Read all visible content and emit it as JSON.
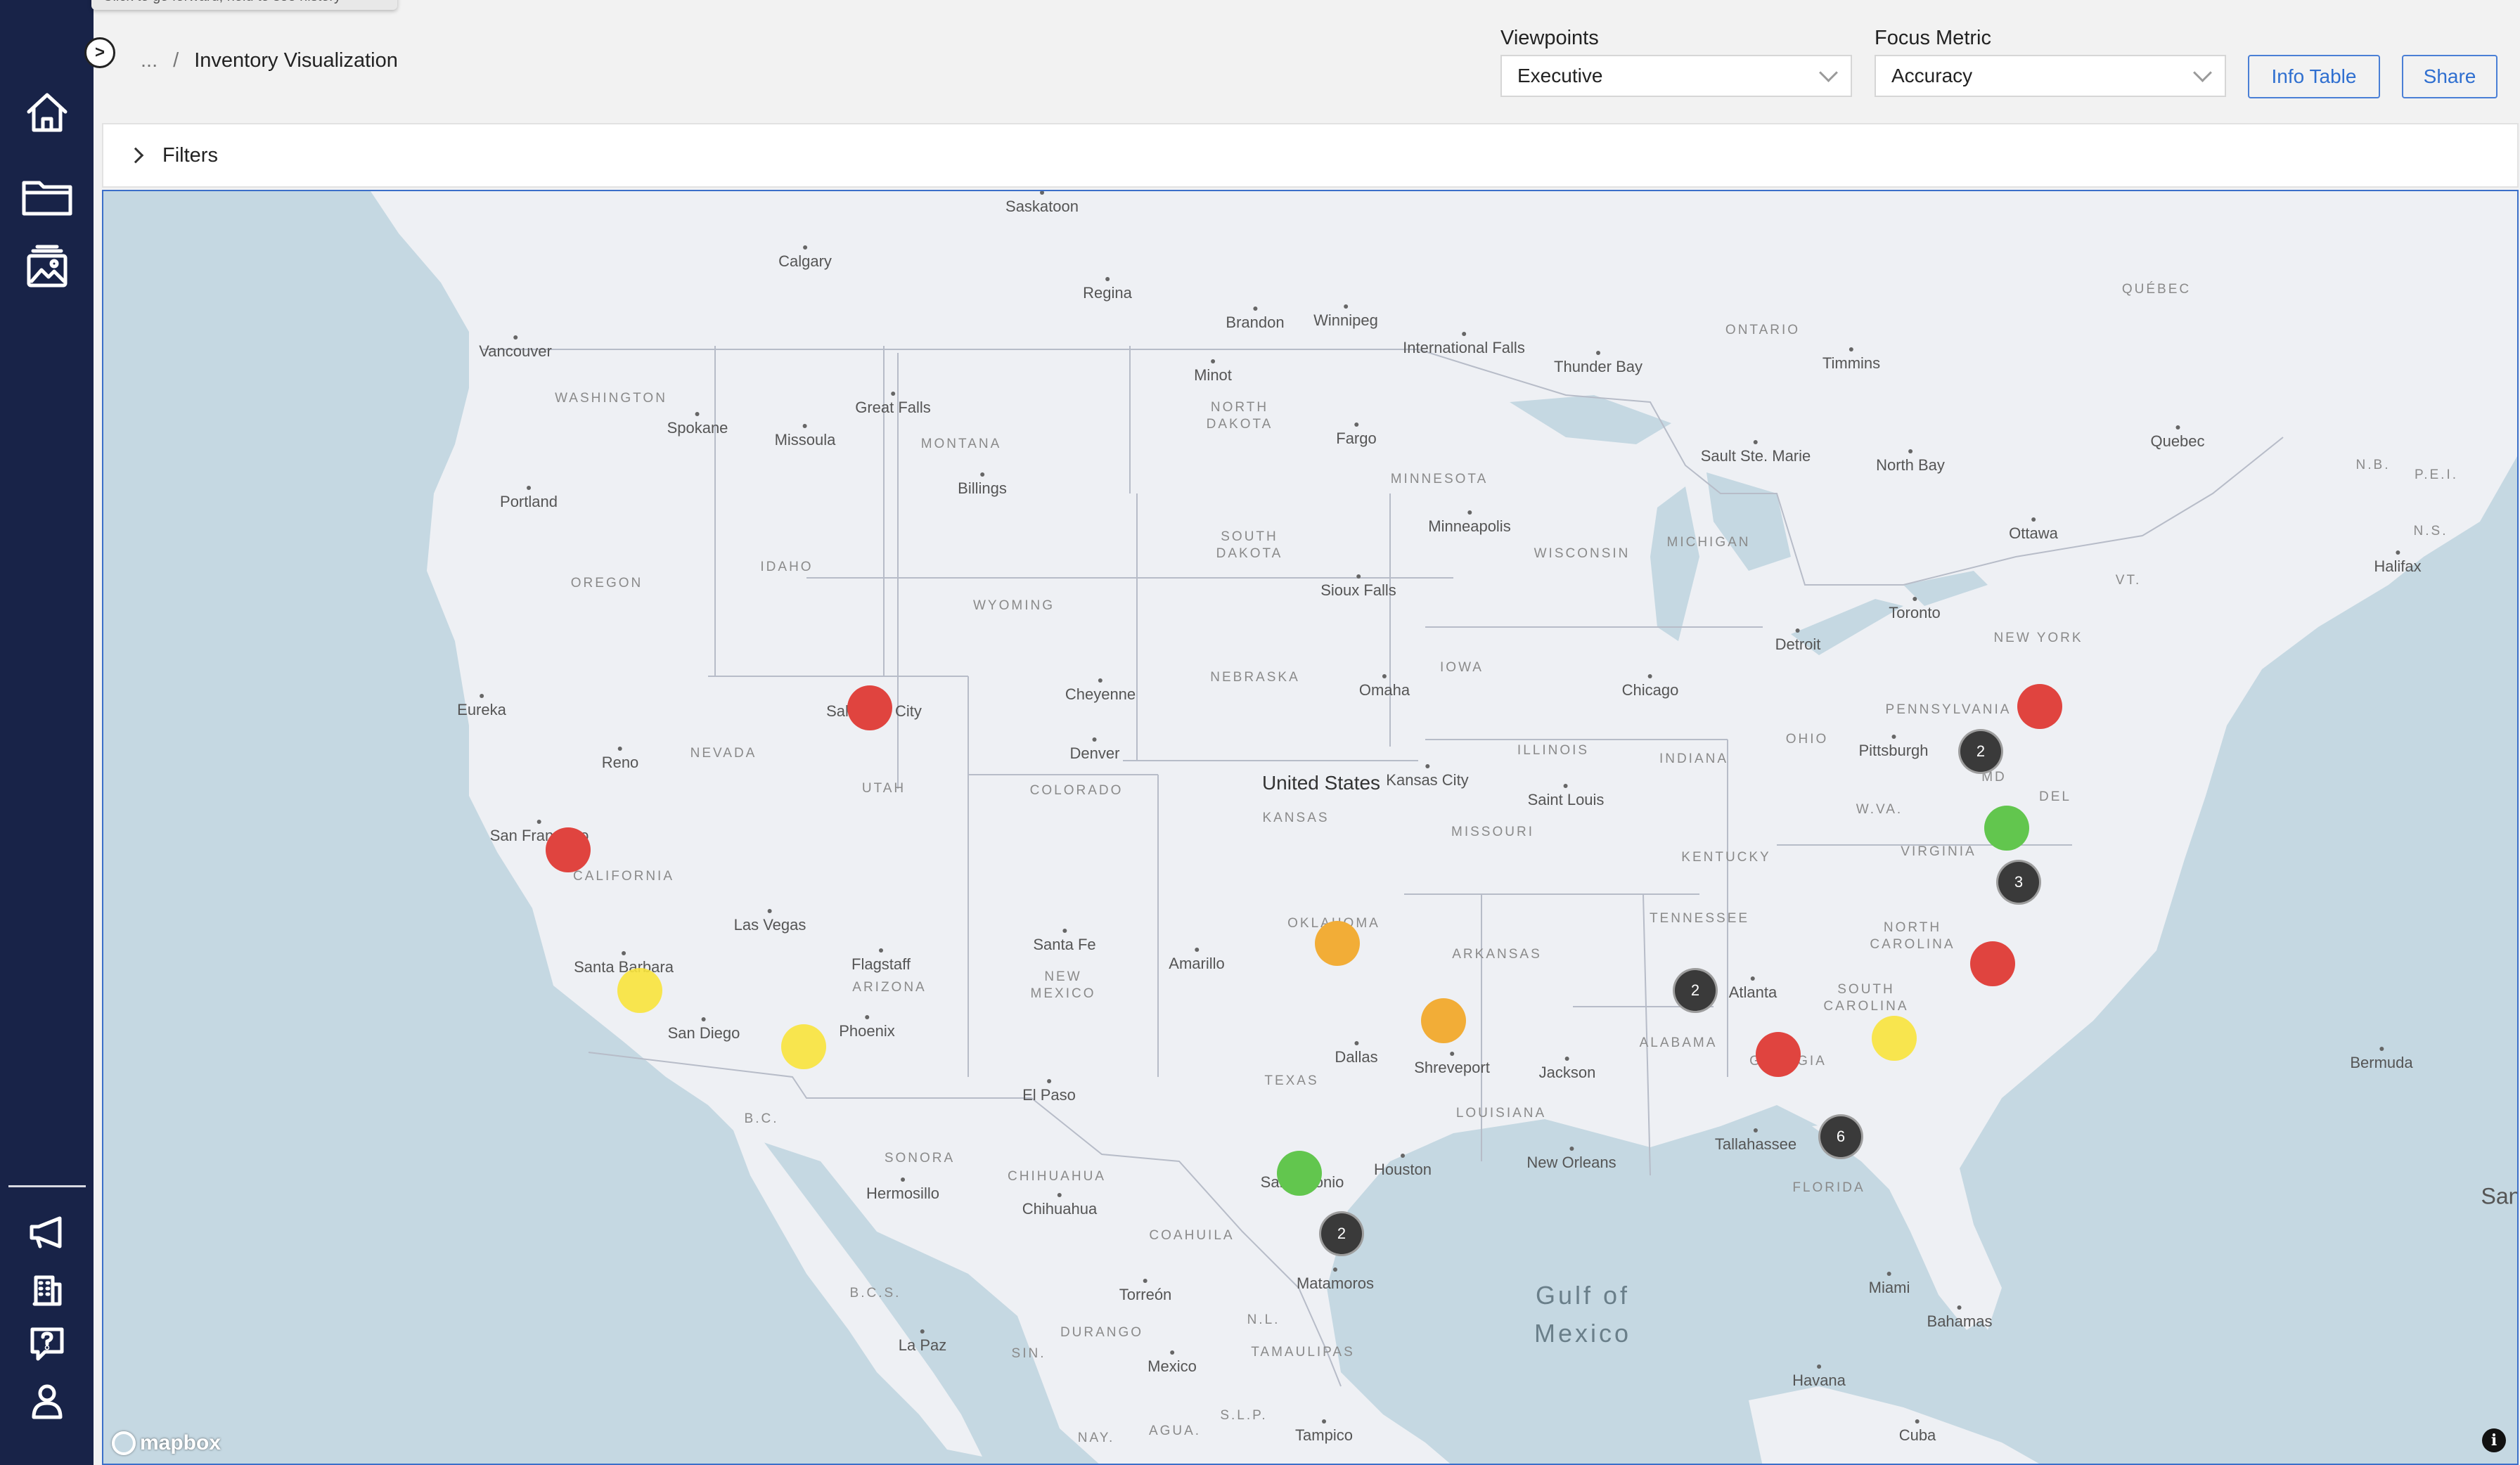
{
  "tooltip": {
    "text": "Click to go forward, hold to see history"
  },
  "breadcrumb": {
    "ellipsis": "...",
    "separator": "/",
    "current": "Inventory Visualization"
  },
  "viewpoints": {
    "label": "Viewpoints",
    "value": "Executive"
  },
  "focus_metric": {
    "label": "Focus Metric",
    "value": "Accuracy"
  },
  "buttons": {
    "info_table": "Info Table",
    "share": "Share"
  },
  "filters": {
    "label": "Filters"
  },
  "sidebar": {
    "items": [
      "home-icon",
      "folder-icon",
      "gallery-icon",
      "megaphone-icon",
      "building-icon",
      "help-icon",
      "user-icon"
    ]
  },
  "map": {
    "attribution": "mapbox",
    "colors": {
      "red": "#e0443f",
      "orange": "#f2ad37",
      "yellow": "#f8e33c",
      "green": "#62c64e",
      "cluster": "#3a3a3a",
      "water": "#c5d8e2",
      "land": "#eef0f4"
    },
    "cities": [
      "Saskatoon",
      "Calgary",
      "Regina",
      "Brandon",
      "Winnipeg",
      "International Falls",
      "Vancouver",
      "Thunder Bay",
      "Timmins",
      "Minot",
      "Spokane",
      "Great Falls",
      "Missoula",
      "Fargo",
      "Sault Ste. Marie",
      "North Bay",
      "Quebec",
      "Portland",
      "Billings",
      "Minneapolis",
      "Ottawa",
      "Halifax",
      "Toronto",
      "Sioux Falls",
      "Detroit",
      "Eureka",
      "Salt Lake City",
      "Cheyenne",
      "Omaha",
      "Chicago",
      "Pittsburgh",
      "Reno",
      "Denver",
      "Kansas City",
      "San Francisco",
      "Saint Louis",
      "Las Vegas",
      "Santa Fe",
      "Amarillo",
      "Santa Barbara",
      "Flagstaff",
      "Atlanta",
      "San Diego",
      "Phoenix",
      "Dallas",
      "Shreveport",
      "Jackson",
      "Bermuda",
      "El Paso",
      "Tallahassee",
      "Hermosillo",
      "Chihuahua",
      "Houston",
      "New Orleans",
      "San Antonio",
      "Miami",
      "Torreón",
      "Matamoros",
      "Bahamas",
      "La Paz",
      "Havana",
      "Mexico",
      "Tampico",
      "Cuba",
      "San"
    ],
    "states": [
      "WASHINGTON",
      "MONTANA",
      "NORTH DAKOTA",
      "MINNESOTA",
      "ONTARIO",
      "QUÉBEC",
      "N.B.",
      "P.E.I.",
      "N.S.",
      "OREGON",
      "IDAHO",
      "SOUTH DAKOTA",
      "WISCONSIN",
      "MICHIGAN",
      "VT.",
      "WYOMING",
      "NEBRASKA",
      "IOWA",
      "NEW YORK",
      "PENNSYLVANIA",
      "NEVADA",
      "UTAH",
      "COLORADO",
      "KANSAS",
      "MISSOURI",
      "ILLINOIS",
      "INDIANA",
      "OHIO",
      "MD",
      "DEL",
      "W.VA.",
      "VIRGINIA",
      "CALIFORNIA",
      "KENTUCKY",
      "OKLAHOMA",
      "TENNESSEE",
      "NORTH CAROLINA",
      "ARKANSAS",
      "SOUTH CAROLINA",
      "ARIZONA",
      "NEW MEXICO",
      "ALABAMA",
      "GEORGIA",
      "TEXAS",
      "LOUISIANA",
      "B.C.",
      "SONORA",
      "CHIHUAHUA",
      "COAHUILA",
      "FLORIDA",
      "B.C.S.",
      "DURANGO",
      "N.L.",
      "TAMAULIPAS",
      "SIN.",
      "S.L.P.",
      "NAY.",
      "AGUA."
    ],
    "countries": [
      "United States"
    ],
    "water": [
      "Gulf of Mexico"
    ],
    "markers": [
      {
        "color": "red",
        "place": "Salt Lake City"
      },
      {
        "color": "red",
        "place": "San Francisco"
      },
      {
        "color": "yellow",
        "place": "Santa Barbara"
      },
      {
        "color": "yellow",
        "place": "Phoenix"
      },
      {
        "color": "orange",
        "place": "Oklahoma"
      },
      {
        "color": "orange",
        "place": "Shreveport"
      },
      {
        "color": "green",
        "place": "San Antonio"
      },
      {
        "color": "red",
        "place": "Georgia"
      },
      {
        "color": "yellow",
        "place": "South Carolina"
      },
      {
        "color": "red",
        "place": "North Carolina"
      },
      {
        "color": "green",
        "place": "Virginia"
      },
      {
        "color": "red",
        "place": "Pennsylvania"
      }
    ],
    "clusters": [
      {
        "count": "2",
        "place": "Maryland"
      },
      {
        "count": "3",
        "place": "Virginia coast"
      },
      {
        "count": "2",
        "place": "Alabama"
      },
      {
        "count": "6",
        "place": "Florida"
      },
      {
        "count": "2",
        "place": "South Texas"
      }
    ]
  }
}
